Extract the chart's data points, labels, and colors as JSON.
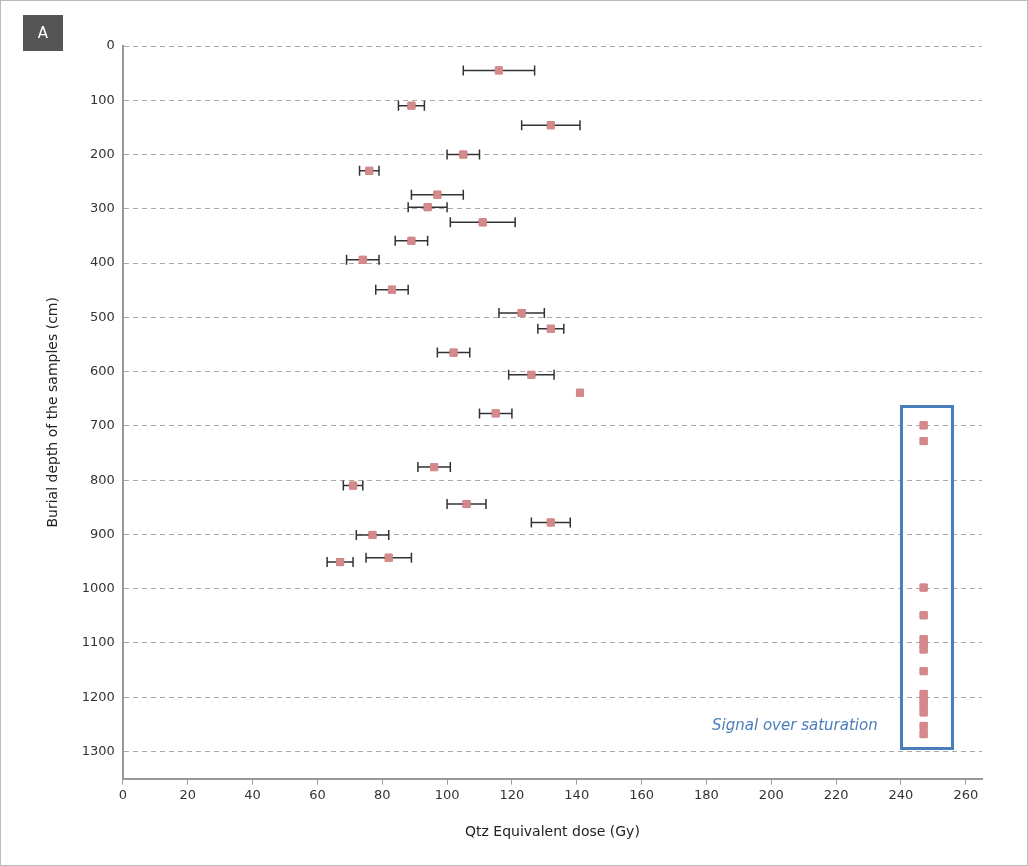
{
  "chart_data": {
    "type": "scatter",
    "title": "A",
    "xlabel": "Qtz Equivalent dose (Gy)",
    "ylabel": "Burial depth of the samples (cm)",
    "xlim": [
      0,
      265
    ],
    "xticks": [
      0,
      20,
      40,
      60,
      80,
      100,
      120,
      140,
      160,
      180,
      200,
      220,
      240,
      260
    ],
    "ylim": [
      1350,
      0
    ],
    "yticks": [
      0,
      100,
      200,
      300,
      400,
      500,
      600,
      700,
      800,
      900,
      1000,
      1100,
      1200,
      1300
    ],
    "grid": "y",
    "legend": false,
    "marker": "square",
    "annotations": [
      "Signal over saturation"
    ],
    "series": [
      {
        "color": "#d4898a",
        "x": [
          116,
          89,
          132,
          105,
          76,
          97,
          94,
          111,
          89,
          74,
          83,
          123,
          132,
          102,
          126,
          141,
          115,
          96,
          71,
          106,
          132,
          77,
          82,
          67
        ],
        "values": [
          45,
          110,
          146,
          200,
          230,
          274,
          297,
          325,
          359,
          394,
          449,
          492,
          521,
          565,
          606,
          639,
          677,
          776,
          810,
          844,
          878,
          901,
          943,
          951
        ],
        "xerrors": [
          11,
          4,
          9,
          5,
          3,
          8,
          6,
          10,
          5,
          5,
          5,
          7,
          4,
          5,
          7,
          null,
          5,
          5,
          3,
          6,
          6,
          5,
          7,
          4
        ]
      },
      {
        "color": "#d4898a",
        "x": [
          247,
          247,
          247,
          247,
          247,
          247,
          247,
          247,
          247,
          247,
          247,
          247,
          247,
          247
        ],
        "values": [
          699,
          728,
          998,
          1049,
          1093,
          1103,
          1112,
          1152,
          1194,
          1205,
          1217,
          1228,
          1253,
          1268
        ]
      }
    ]
  }
}
